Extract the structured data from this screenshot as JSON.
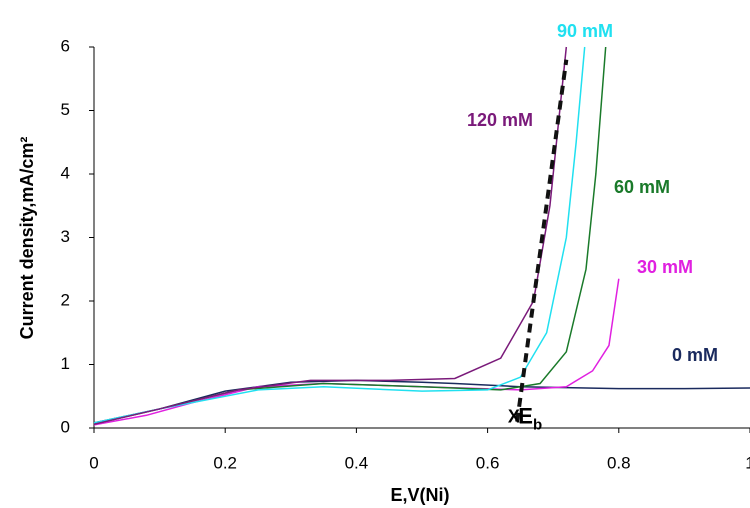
{
  "chart_data": {
    "type": "line",
    "xlabel": "E,V(Ni)",
    "ylabel": "Current density,mA/cm²",
    "xlim": [
      0,
      1
    ],
    "ylim": [
      0,
      6
    ],
    "xticks": [
      0,
      0.2,
      0.4,
      0.6,
      0.8,
      1
    ],
    "yticks": [
      0,
      1,
      2,
      3,
      4,
      5,
      6
    ],
    "series": [
      {
        "name": "0 mM",
        "color": "#1a2a5e",
        "x": [
          0,
          0.1,
          0.2,
          0.3,
          0.4,
          0.5,
          0.55,
          0.65,
          0.8,
          0.9,
          1
        ],
        "values": [
          0.08,
          0.3,
          0.58,
          0.72,
          0.75,
          0.72,
          0.7,
          0.65,
          0.62,
          0.62,
          0.63
        ]
      },
      {
        "name": "30 mM",
        "color": "#e020e0",
        "x": [
          0,
          0.08,
          0.15,
          0.25,
          0.35,
          0.5,
          0.65,
          0.72,
          0.76,
          0.785,
          0.8
        ],
        "values": [
          0.05,
          0.2,
          0.4,
          0.65,
          0.7,
          0.65,
          0.6,
          0.65,
          0.9,
          1.3,
          2.35
        ]
      },
      {
        "name": "60 mM",
        "color": "#1a7a2a",
        "x": [
          0,
          0.1,
          0.22,
          0.35,
          0.5,
          0.62,
          0.68,
          0.72,
          0.75,
          0.765,
          0.78
        ],
        "values": [
          0.06,
          0.3,
          0.6,
          0.7,
          0.65,
          0.6,
          0.7,
          1.2,
          2.5,
          4,
          6
        ]
      },
      {
        "name": "90 mM",
        "color": "#20e0f0",
        "x": [
          0,
          0.1,
          0.25,
          0.35,
          0.5,
          0.6,
          0.65,
          0.69,
          0.72,
          0.735,
          0.748
        ],
        "values": [
          0.08,
          0.3,
          0.6,
          0.65,
          0.58,
          0.6,
          0.8,
          1.5,
          3,
          4.5,
          6
        ]
      },
      {
        "name": "120 mM",
        "color": "#7a1a7a",
        "x": [
          0,
          0.1,
          0.22,
          0.33,
          0.45,
          0.55,
          0.62,
          0.67,
          0.695,
          0.71,
          0.72
        ],
        "values": [
          0.06,
          0.3,
          0.6,
          0.75,
          0.75,
          0.78,
          1.1,
          2,
          3.5,
          5,
          6
        ]
      }
    ],
    "annotations": [
      {
        "type": "dashed-line",
        "x": [
          0.645,
          0.72
        ],
        "y": [
          0.1,
          5.8
        ]
      },
      {
        "text": "X",
        "x": 0.64,
        "y": 0.1
      },
      {
        "text": "E",
        "subscript": "b",
        "x": 0.665,
        "y": 0.1
      }
    ]
  }
}
